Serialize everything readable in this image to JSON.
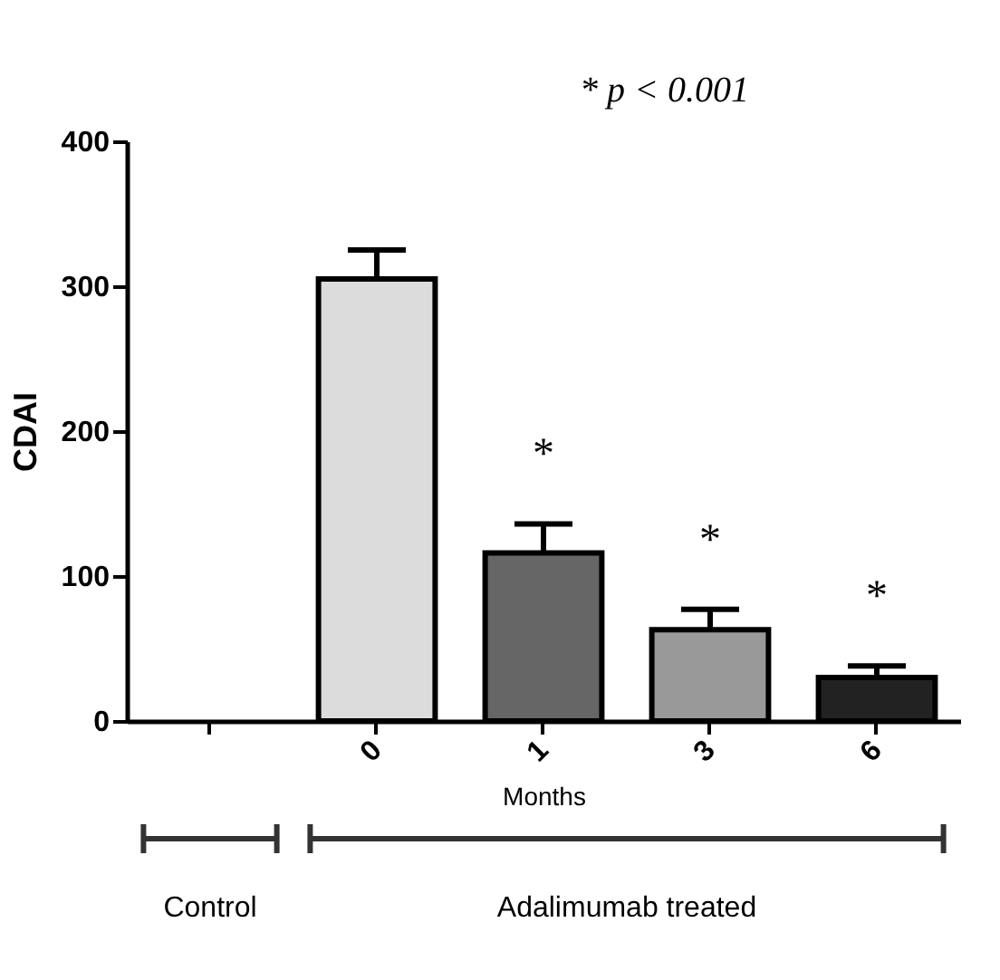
{
  "chart_data": {
    "type": "bar",
    "xlabel": "Months",
    "ylabel": "CDAI",
    "categories": [
      null,
      "0",
      "1",
      "3",
      "6"
    ],
    "values": [
      null,
      305,
      116,
      63,
      30
    ],
    "errors": [
      null,
      20,
      20,
      14,
      8
    ],
    "colors": [
      "#ffffff",
      "#dcdcdc",
      "#666666",
      "#999999",
      "#222222"
    ],
    "ylim": [
      0,
      400
    ],
    "yticks": [
      0,
      100,
      200,
      300,
      400
    ],
    "grid": false,
    "annotations": [
      "* p < 0.001",
      "Control",
      "Adalimumab treated",
      "*",
      "*",
      "*"
    ]
  }
}
